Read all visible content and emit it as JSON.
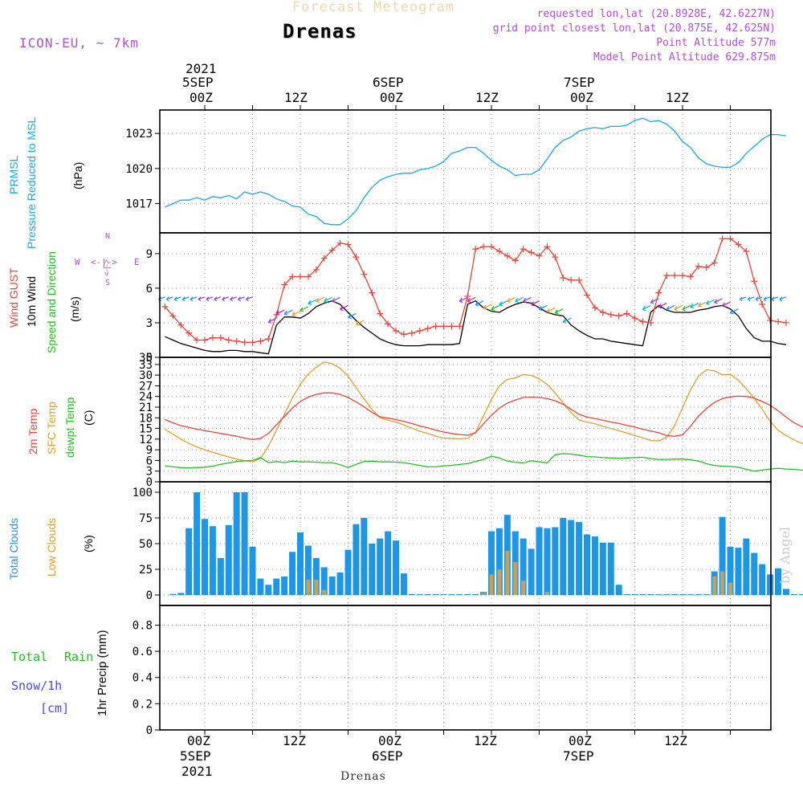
{
  "header": {
    "product": "Forecast Meteogram",
    "location": "Drenas",
    "model": "ICON-EU, ~ 7km",
    "requested": "requested lon,lat (20.8928E, 42.6227N)",
    "grid_point": "grid point closest lon,lat (20.875E, 42.625N)",
    "point_altitude": "Point Altitude 577m",
    "model_altitude": "Model Point Altitude 629.875m",
    "credit": "by Angel",
    "footer_location": "Drenas"
  },
  "time_axis": {
    "top_ticks": [
      "00Z",
      "12Z",
      "00Z",
      "12Z",
      "00Z",
      "12Z"
    ],
    "top_day_labels": [
      {
        "year": "2021",
        "day": "5SEP"
      },
      {
        "year": "",
        "day": "6SEP"
      },
      {
        "year": "",
        "day": "7SEP"
      }
    ],
    "bottom_ticks": [
      "00Z",
      "12Z",
      "00Z",
      "12Z",
      "00Z",
      "12Z"
    ],
    "bottom_day_labels": [
      {
        "day": "5SEP",
        "year": "2021"
      },
      {
        "day": "6SEP",
        "year": ""
      },
      {
        "day": "7SEP",
        "year": ""
      }
    ]
  },
  "panel_labels": {
    "pressure": {
      "line1": "PRMSL",
      "line2": "Pressure Reduced to MSL",
      "unit": "(hPa)"
    },
    "wind": {
      "gust": "Wind GUST",
      "wind10": "10m Wind",
      "dir": "Speed and Direction",
      "unit": "(m/s)",
      "compass_n": "N",
      "compass_s": "S",
      "compass_w": "W",
      "compass_e": "E",
      "compass_ns": "<-|->",
      "compass_we": "<-|->"
    },
    "temp": {
      "t2m": "2m Temp",
      "sfc": "SFC Temp",
      "dewpt": "dewpt Temp",
      "unit": "(C)"
    },
    "clouds": {
      "total": "Total Clouds",
      "low": "Low Clouds",
      "unit": "(%)"
    },
    "precip": {
      "total": "Total",
      "rain": "Rain",
      "snow": "Snow/1h",
      "cm": "[cm]",
      "unit": "1hr Precip (mm)"
    }
  },
  "colors": {
    "pressure": "#1ea7e8",
    "gust": "#e8463c",
    "wind": "#000000",
    "t2m": "#e8463c",
    "sfc": "#e0a030",
    "dewpt": "#22c022",
    "total_cloud": "#1e96e8",
    "low_cloud": "#c8a050",
    "title": "#f0d8a8",
    "meta": "#b04fd6",
    "total_rain": "#22c022",
    "snow": "#4a4ae8"
  },
  "chart_data": [
    {
      "type": "line",
      "name": "pressure",
      "title": "PRMSL Pressure Reduced to MSL",
      "ylabel": "hPa",
      "ylim": [
        1014.5,
        1025
      ],
      "yticks": [
        1017,
        1020,
        1023
      ],
      "x_hours_start": -5,
      "x_hours_step": 1,
      "series": [
        {
          "name": "PRMSL",
          "values": [
            1016.7,
            1017,
            1017.3,
            1017.3,
            1017.5,
            1017.3,
            1017.6,
            1017.5,
            1017.7,
            1017.4,
            1018,
            1017.8,
            1018,
            1017.8,
            1017.4,
            1017.2,
            1016.8,
            1016.7,
            1016.1,
            1015.9,
            1015.3,
            1015.2,
            1015.2,
            1015.7,
            1016.4,
            1017.5,
            1018.4,
            1019,
            1019.3,
            1019.5,
            1019.6,
            1019.6,
            1019.9,
            1020,
            1020.2,
            1020.6,
            1021.3,
            1021.5,
            1021.8,
            1021.8,
            1021.3,
            1020.7,
            1020.2,
            1019.9,
            1019.4,
            1019.5,
            1019.5,
            1019.9,
            1020.8,
            1021.8,
            1022.4,
            1022.7,
            1023.2,
            1023.4,
            1023.5,
            1023.4,
            1023.6,
            1023.6,
            1023.7,
            1024.1,
            1024.3,
            1024,
            1024.1,
            1023.8,
            1023.2,
            1022.3,
            1021.8,
            1020.9,
            1020.4,
            1020.2,
            1020.1,
            1020.1,
            1020.5,
            1021.3,
            1021.9,
            1022.5,
            1022.9,
            1022.9,
            1022.8
          ]
        }
      ]
    },
    {
      "type": "line",
      "name": "wind",
      "title": "Wind GUST / 10m Wind Speed and Direction",
      "ylabel": "m/s",
      "ylim": [
        0,
        10.8
      ],
      "yticks": [
        0,
        3,
        6,
        9
      ],
      "x_hours_start": -5,
      "x_hours_step": 1,
      "series": [
        {
          "name": "Wind GUST",
          "values": [
            4.4,
            3.6,
            2.8,
            2.1,
            1.5,
            1.5,
            1.7,
            1.7,
            1.5,
            1.4,
            1.3,
            1.3,
            1.4,
            1.6,
            3.7,
            6.3,
            7,
            7,
            7,
            7.6,
            8.6,
            9.3,
            9.9,
            9.8,
            8.7,
            7.2,
            5.6,
            3.8,
            2.9,
            2.3,
            2,
            2.1,
            2.3,
            2.5,
            2.7,
            2.7,
            2.7,
            2.7,
            5.3,
            9.4,
            9.6,
            9.6,
            9.2,
            8.8,
            8.4,
            9.4,
            9.1,
            8.8,
            9.6,
            8.7,
            6.9,
            6.7,
            6.7,
            5.4,
            4.3,
            3.9,
            3.7,
            3.6,
            3.8,
            3.4,
            3.1,
            3,
            5.6,
            7.1,
            7.1,
            7.1,
            7,
            7.9,
            7.8,
            8.2,
            10.3,
            10.3,
            9.8,
            9.2,
            6.6,
            4.6,
            3.2,
            3.1,
            3.0
          ]
        },
        {
          "name": "10m Wind",
          "values": [
            1.8,
            1.5,
            1.2,
            1,
            0.8,
            0.6,
            0.5,
            0.5,
            0.6,
            0.6,
            0.5,
            0.5,
            0.4,
            0.3,
            2.8,
            3.5,
            3.5,
            3.4,
            3.8,
            4.4,
            4.7,
            4.9,
            4.6,
            3.9,
            3.2,
            2.6,
            2.1,
            1.6,
            1.3,
            1.1,
            1,
            1,
            1,
            1.1,
            1.1,
            1.1,
            1.1,
            1.2,
            4.6,
            4.9,
            4.3,
            4,
            3.9,
            4.3,
            4.6,
            4.8,
            4.7,
            4.3,
            3.9,
            3.7,
            3.6,
            2.8,
            2.3,
            1.9,
            1.6,
            1.6,
            1.4,
            1.3,
            1.2,
            1.1,
            1,
            3.9,
            4.5,
            4.1,
            3.9,
            3.9,
            3.9,
            4.1,
            4.2,
            4.4,
            4.5,
            4.2,
            3.6,
            2.5,
            1.7,
            1.4,
            1.4,
            1.2,
            1.1
          ]
        }
      ]
    },
    {
      "type": "line",
      "name": "temperature",
      "title": "2m Temp / SFC Temp / dewpt Temp",
      "ylabel": "C",
      "ylim": [
        0,
        35
      ],
      "yticks": [
        0,
        3,
        6,
        9,
        12,
        15,
        18,
        21,
        24,
        27,
        30,
        33,
        35
      ],
      "x_hours_start": -5,
      "x_hours_step": 1,
      "series": [
        {
          "name": "2m Temp",
          "values": [
            17.5,
            16.6,
            15.8,
            15.3,
            14.8,
            14.4,
            14,
            13.6,
            13.2,
            12.8,
            12.3,
            11.9,
            12.2,
            13.6,
            16,
            18.4,
            20.7,
            22.6,
            23.8,
            24.6,
            25,
            25,
            24.6,
            23.7,
            22.5,
            21.1,
            19.5,
            18.3,
            17.9,
            17.5,
            17,
            16.4,
            15.7,
            15.2,
            14.5,
            14,
            13.6,
            13.3,
            13.1,
            13.8,
            16.3,
            18.7,
            20.7,
            22.1,
            23,
            23.7,
            23.8,
            23.7,
            23.4,
            22.8,
            21.8,
            20.4,
            19,
            18.2,
            17.8,
            17.3,
            16.8,
            16.4,
            15.9,
            15.4,
            14.8,
            14.3,
            13.8,
            13,
            12.8,
            13.2,
            15.6,
            18.5,
            20.6,
            22.3,
            23.4,
            23.9,
            24.1,
            24,
            23.5,
            22.6,
            21.5,
            20,
            18.2,
            16.6,
            15.5,
            14.6,
            13.9,
            13.2
          ]
        },
        {
          "name": "SFC Temp",
          "values": [
            14.8,
            13.4,
            12,
            10.8,
            9.8,
            9,
            8.3,
            7.6,
            7,
            6.4,
            5.9,
            5.6,
            6.6,
            10,
            14.5,
            19,
            23.6,
            27.4,
            30.3,
            32.2,
            33.7,
            33.2,
            31.9,
            29.7,
            26.5,
            23.4,
            20.3,
            18,
            17.3,
            16.8,
            16,
            15.1,
            14.2,
            13.6,
            12.8,
            12.3,
            12.2,
            12.1,
            12.2,
            14,
            18.5,
            23.2,
            27,
            28.8,
            29.2,
            30.2,
            29.9,
            28.9,
            27.4,
            25,
            22.2,
            19.4,
            17.4,
            16.8,
            16.3,
            15.6,
            15,
            14.4,
            13.7,
            13,
            12.4,
            11.6,
            11.5,
            12.5,
            15.8,
            20.8,
            25.8,
            29.7,
            31.5,
            31.2,
            30.1,
            30.2,
            28.6,
            26.2,
            23.5,
            20.4,
            17,
            14.5,
            13,
            11.8,
            10.8,
            9.8
          ]
        },
        {
          "name": "dewpt Temp",
          "values": [
            4.5,
            4.2,
            4,
            3.9,
            4,
            4.1,
            4.4,
            4.9,
            5.3,
            5.7,
            5.9,
            6,
            6.8,
            5.4,
            5.7,
            5.4,
            5.8,
            5.6,
            5.6,
            5.5,
            5.4,
            5.4,
            4.8,
            4,
            4.9,
            5.7,
            5.8,
            5.6,
            5.6,
            5.5,
            5.4,
            5,
            4.6,
            4.2,
            4.2,
            4.5,
            4.6,
            4.9,
            5.1,
            5.7,
            6.3,
            7.2,
            6.7,
            5.8,
            5.5,
            5.3,
            5.9,
            5.6,
            5.3,
            7.6,
            7.9,
            7.8,
            7.5,
            7.1,
            7,
            6.8,
            6.7,
            6.6,
            6.7,
            6.8,
            6.9,
            6.5,
            6.3,
            6.3,
            6.4,
            6.4,
            6.2,
            5.8,
            5.1,
            4.6,
            4.4,
            4.3,
            4.1,
            3.5,
            3,
            3.3,
            3.6,
            3.8,
            3.6,
            3.5,
            3.3,
            3.1,
            3.4
          ]
        }
      ]
    },
    {
      "type": "bar",
      "name": "clouds",
      "title": "Total Clouds / Low Clouds",
      "ylabel": "%",
      "ylim": [
        0,
        100
      ],
      "yticks": [
        0,
        25,
        50,
        75,
        100
      ],
      "x_hours_start": -4,
      "x_hours_step": 1,
      "series": [
        {
          "name": "Total Clouds",
          "values": [
            1,
            2,
            65,
            100,
            74,
            67,
            36,
            68,
            100,
            100,
            47,
            16,
            10,
            16,
            18,
            42,
            61,
            48,
            36,
            27,
            18,
            22,
            44,
            69,
            75,
            50,
            55,
            62,
            53,
            21,
            1,
            0,
            0,
            0,
            0,
            0,
            0,
            0,
            0,
            3,
            62,
            65,
            78,
            62,
            55,
            45,
            66,
            65,
            66,
            75,
            73,
            71,
            59,
            57,
            51,
            51,
            10,
            0,
            0,
            0,
            0,
            0,
            0,
            0,
            0,
            0,
            0,
            0,
            23,
            76,
            47,
            46,
            55,
            41,
            30,
            20,
            26,
            6,
            0,
            0
          ]
        },
        {
          "name": "Low Clouds",
          "values": [
            0,
            0,
            0,
            0,
            0,
            0,
            0,
            0,
            0,
            0,
            0,
            0,
            0,
            0,
            0,
            0,
            0,
            15,
            15,
            5,
            0,
            0,
            0,
            0,
            0,
            0,
            0,
            0,
            0,
            0,
            0,
            0,
            0,
            0,
            0,
            0,
            0,
            0,
            0,
            2,
            20,
            25,
            43,
            32,
            14,
            0,
            0,
            3,
            0,
            0,
            0,
            0,
            0,
            0,
            0,
            0,
            0,
            0,
            0,
            0,
            0,
            0,
            0,
            0,
            0,
            0,
            0,
            0,
            18,
            23,
            12,
            0,
            0,
            0,
            0,
            0,
            0,
            0,
            0,
            0
          ]
        }
      ]
    },
    {
      "type": "bar",
      "name": "precip",
      "title": "1hr Precip",
      "ylabel": "1hr Precip (mm)",
      "ylim": [
        0,
        0.95
      ],
      "yticks": [
        0,
        0.2,
        0.4,
        0.6,
        0.8
      ],
      "series": [
        {
          "name": "Total Rain",
          "values": []
        },
        {
          "name": "Snow/1h",
          "values": []
        }
      ]
    }
  ]
}
